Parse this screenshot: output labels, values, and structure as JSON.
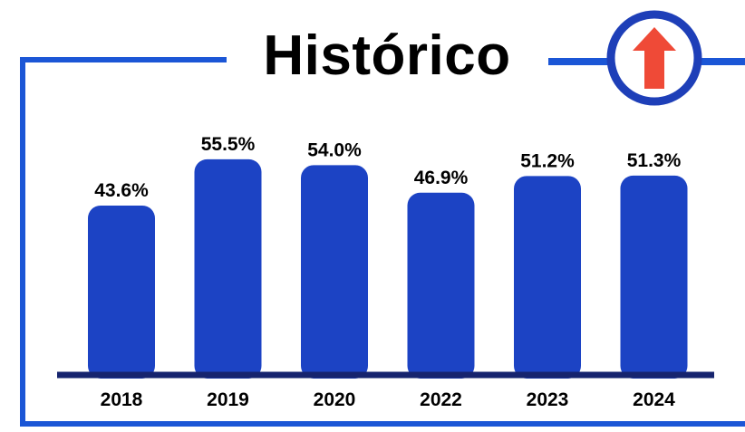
{
  "colors": {
    "frame": "#1b56d6",
    "bar": "#1c43c4",
    "axis": "#16246e",
    "badge_ring": "#1e3fb8",
    "arrow": "#ef4a37",
    "text": "#000000"
  },
  "badge": {
    "icon": "up-arrow-icon"
  },
  "chart_data": {
    "type": "bar",
    "title": "Histórico",
    "categories": [
      "2018",
      "2019",
      "2020",
      "2022",
      "2023",
      "2024"
    ],
    "values": [
      43.6,
      55.5,
      54.0,
      46.9,
      51.2,
      51.3
    ],
    "value_labels": [
      "43.6%",
      "55.5%",
      "54.0%",
      "46.9%",
      "51.2%",
      "51.3%"
    ],
    "ylim": [
      0,
      60
    ],
    "grid": false,
    "legend": "none"
  }
}
